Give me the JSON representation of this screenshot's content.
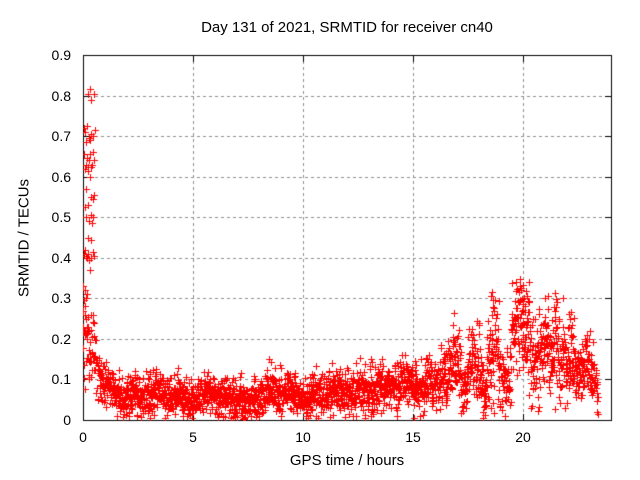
{
  "chart_data": {
    "type": "scatter",
    "title": "Day 131 of 2021, SRMTID for receiver cn40",
    "xlabel": "GPS time / hours",
    "ylabel": "SRMTID / TECUs",
    "xlim": [
      0,
      24
    ],
    "ylim": [
      0,
      0.9
    ],
    "xtick_labels": [
      "0",
      "5",
      "10",
      "15",
      "20"
    ],
    "ytick_labels": [
      "0",
      "0.1",
      "0.2",
      "0.3",
      "0.4",
      "0.5",
      "0.6",
      "0.7",
      "0.8",
      "0.9"
    ],
    "grid": {
      "visible": true,
      "style": "dashed",
      "color": "#8f8f8f"
    },
    "axis_color": "#000000",
    "background": "#ffffff",
    "marker": "plus",
    "marker_color": "#ff0000",
    "x_data_range": [
      0.02,
      23.4
    ],
    "y_data_max": 0.815,
    "spike_points": [
      [
        0.23,
        0.805
      ],
      [
        0.5,
        0.805
      ],
      [
        0.36,
        0.79
      ],
      [
        0.32,
        0.815
      ],
      [
        0.05,
        0.72
      ],
      [
        0.09,
        0.71
      ],
      [
        0.18,
        0.725
      ],
      [
        0.27,
        0.695
      ],
      [
        0.36,
        0.705
      ],
      [
        0.45,
        0.7
      ],
      [
        0.55,
        0.715
      ],
      [
        0.14,
        0.685
      ],
      [
        0.32,
        0.69
      ],
      [
        0.05,
        0.655
      ],
      [
        0.09,
        0.62
      ],
      [
        0.14,
        0.63
      ],
      [
        0.18,
        0.645
      ],
      [
        0.23,
        0.625
      ],
      [
        0.27,
        0.64
      ],
      [
        0.32,
        0.655
      ],
      [
        0.36,
        0.625
      ],
      [
        0.41,
        0.63
      ],
      [
        0.45,
        0.66
      ],
      [
        0.5,
        0.64
      ],
      [
        0.23,
        0.615
      ],
      [
        0.32,
        0.6
      ],
      [
        0.14,
        0.57
      ],
      [
        0.36,
        0.55
      ],
      [
        0.45,
        0.545
      ],
      [
        0.5,
        0.555
      ],
      [
        0.09,
        0.525
      ],
      [
        0.23,
        0.53
      ],
      [
        0.14,
        0.5
      ],
      [
        0.27,
        0.49
      ],
      [
        0.36,
        0.505
      ],
      [
        0.45,
        0.5
      ],
      [
        0.41,
        0.485
      ],
      [
        0.23,
        0.45
      ],
      [
        0.36,
        0.445
      ],
      [
        0.05,
        0.41
      ],
      [
        0.09,
        0.42
      ],
      [
        0.14,
        0.405
      ],
      [
        0.18,
        0.4
      ],
      [
        0.23,
        0.41
      ],
      [
        0.27,
        0.395
      ],
      [
        0.36,
        0.4
      ],
      [
        0.45,
        0.415
      ],
      [
        0.5,
        0.405
      ],
      [
        0.32,
        0.37
      ],
      [
        0.02,
        0.33
      ],
      [
        0.07,
        0.32
      ],
      [
        0.12,
        0.3
      ],
      [
        0.18,
        0.31
      ],
      [
        0.05,
        0.295
      ],
      [
        0.02,
        0.27
      ],
      [
        0.09,
        0.26
      ],
      [
        0.14,
        0.25
      ],
      [
        0.23,
        0.255
      ],
      [
        0.45,
        0.26
      ],
      [
        0.09,
        0.28
      ],
      [
        0.02,
        0.23
      ],
      [
        0.07,
        0.22
      ],
      [
        0.16,
        0.215
      ],
      [
        0.27,
        0.22
      ]
    ],
    "bands_columns": [
      "x_start",
      "x_end",
      "n_points",
      "y_center_start",
      "y_center_end",
      "y_spread"
    ],
    "bands": [
      [
        0.0,
        0.3,
        22,
        0.17,
        0.15,
        0.045
      ],
      [
        0.3,
        0.7,
        32,
        0.15,
        0.12,
        0.038
      ],
      [
        0.7,
        1.1,
        45,
        0.115,
        0.085,
        0.028
      ],
      [
        1.1,
        2.0,
        100,
        0.075,
        0.065,
        0.026
      ],
      [
        2.0,
        3.0,
        112,
        0.068,
        0.066,
        0.025
      ],
      [
        3.0,
        4.0,
        112,
        0.063,
        0.061,
        0.024
      ],
      [
        4.0,
        5.0,
        112,
        0.061,
        0.059,
        0.023
      ],
      [
        5.0,
        6.0,
        112,
        0.058,
        0.057,
        0.023
      ],
      [
        6.0,
        7.0,
        112,
        0.056,
        0.054,
        0.024
      ],
      [
        7.0,
        7.6,
        66,
        0.05,
        0.05,
        0.026
      ],
      [
        7.6,
        9.0,
        155,
        0.06,
        0.064,
        0.028
      ],
      [
        9.0,
        10.5,
        165,
        0.059,
        0.06,
        0.024
      ],
      [
        10.5,
        12.0,
        165,
        0.066,
        0.069,
        0.027
      ],
      [
        12.0,
        13.5,
        165,
        0.073,
        0.077,
        0.029
      ],
      [
        13.5,
        15.0,
        165,
        0.08,
        0.085,
        0.029
      ],
      [
        15.0,
        16.0,
        110,
        0.088,
        0.094,
        0.032
      ],
      [
        16.0,
        16.8,
        88,
        0.098,
        0.105,
        0.038
      ],
      [
        16.8,
        17.2,
        44,
        0.125,
        0.125,
        0.048
      ],
      [
        17.2,
        17.5,
        33,
        0.092,
        0.092,
        0.033
      ],
      [
        17.5,
        18.05,
        60,
        0.135,
        0.135,
        0.052
      ],
      [
        18.05,
        18.35,
        36,
        0.1,
        0.1,
        0.038
      ],
      [
        18.35,
        18.9,
        62,
        0.165,
        0.165,
        0.065
      ],
      [
        18.9,
        19.45,
        60,
        0.115,
        0.112,
        0.04
      ],
      [
        19.45,
        20.35,
        105,
        0.21,
        0.205,
        0.062
      ],
      [
        20.35,
        20.9,
        62,
        0.15,
        0.15,
        0.052
      ],
      [
        20.9,
        21.6,
        80,
        0.185,
        0.185,
        0.06
      ],
      [
        21.6,
        22.3,
        80,
        0.14,
        0.14,
        0.048
      ],
      [
        22.3,
        23.0,
        78,
        0.122,
        0.118,
        0.038
      ],
      [
        23.0,
        23.4,
        44,
        0.118,
        0.112,
        0.032
      ]
    ],
    "outliers": [
      [
        2.35,
        0.122
      ],
      [
        3.05,
        0.118
      ],
      [
        4.3,
        0.128
      ],
      [
        5.5,
        0.118
      ],
      [
        7.2,
        0.115
      ],
      [
        8.45,
        0.15
      ],
      [
        8.55,
        0.142
      ],
      [
        8.95,
        0.135
      ],
      [
        9.0,
        0.128
      ],
      [
        11.2,
        0.122
      ],
      [
        12.4,
        0.14
      ],
      [
        13.1,
        0.15
      ],
      [
        13.15,
        0.142
      ],
      [
        14.3,
        0.132
      ],
      [
        15.1,
        0.145
      ],
      [
        15.6,
        0.152
      ],
      [
        16.5,
        0.165
      ],
      [
        16.85,
        0.198
      ],
      [
        16.9,
        0.188
      ],
      [
        17.7,
        0.225
      ],
      [
        18.55,
        0.305
      ],
      [
        18.6,
        0.315
      ],
      [
        18.65,
        0.295
      ],
      [
        19.9,
        0.325
      ],
      [
        20.0,
        0.332
      ],
      [
        20.15,
        0.318
      ],
      [
        20.2,
        0.305
      ],
      [
        21.0,
        0.302
      ],
      [
        21.45,
        0.312
      ],
      [
        21.5,
        0.298
      ],
      [
        21.8,
        0.3
      ],
      [
        22.1,
        0.262
      ],
      [
        22.15,
        0.248
      ],
      [
        22.3,
        0.252
      ],
      [
        23.05,
        0.22
      ]
    ],
    "low_points": [
      [
        7.29,
        0.002
      ],
      [
        7.3,
        0.004
      ],
      [
        7.31,
        0.006
      ],
      [
        7.32,
        0.003
      ]
    ]
  }
}
